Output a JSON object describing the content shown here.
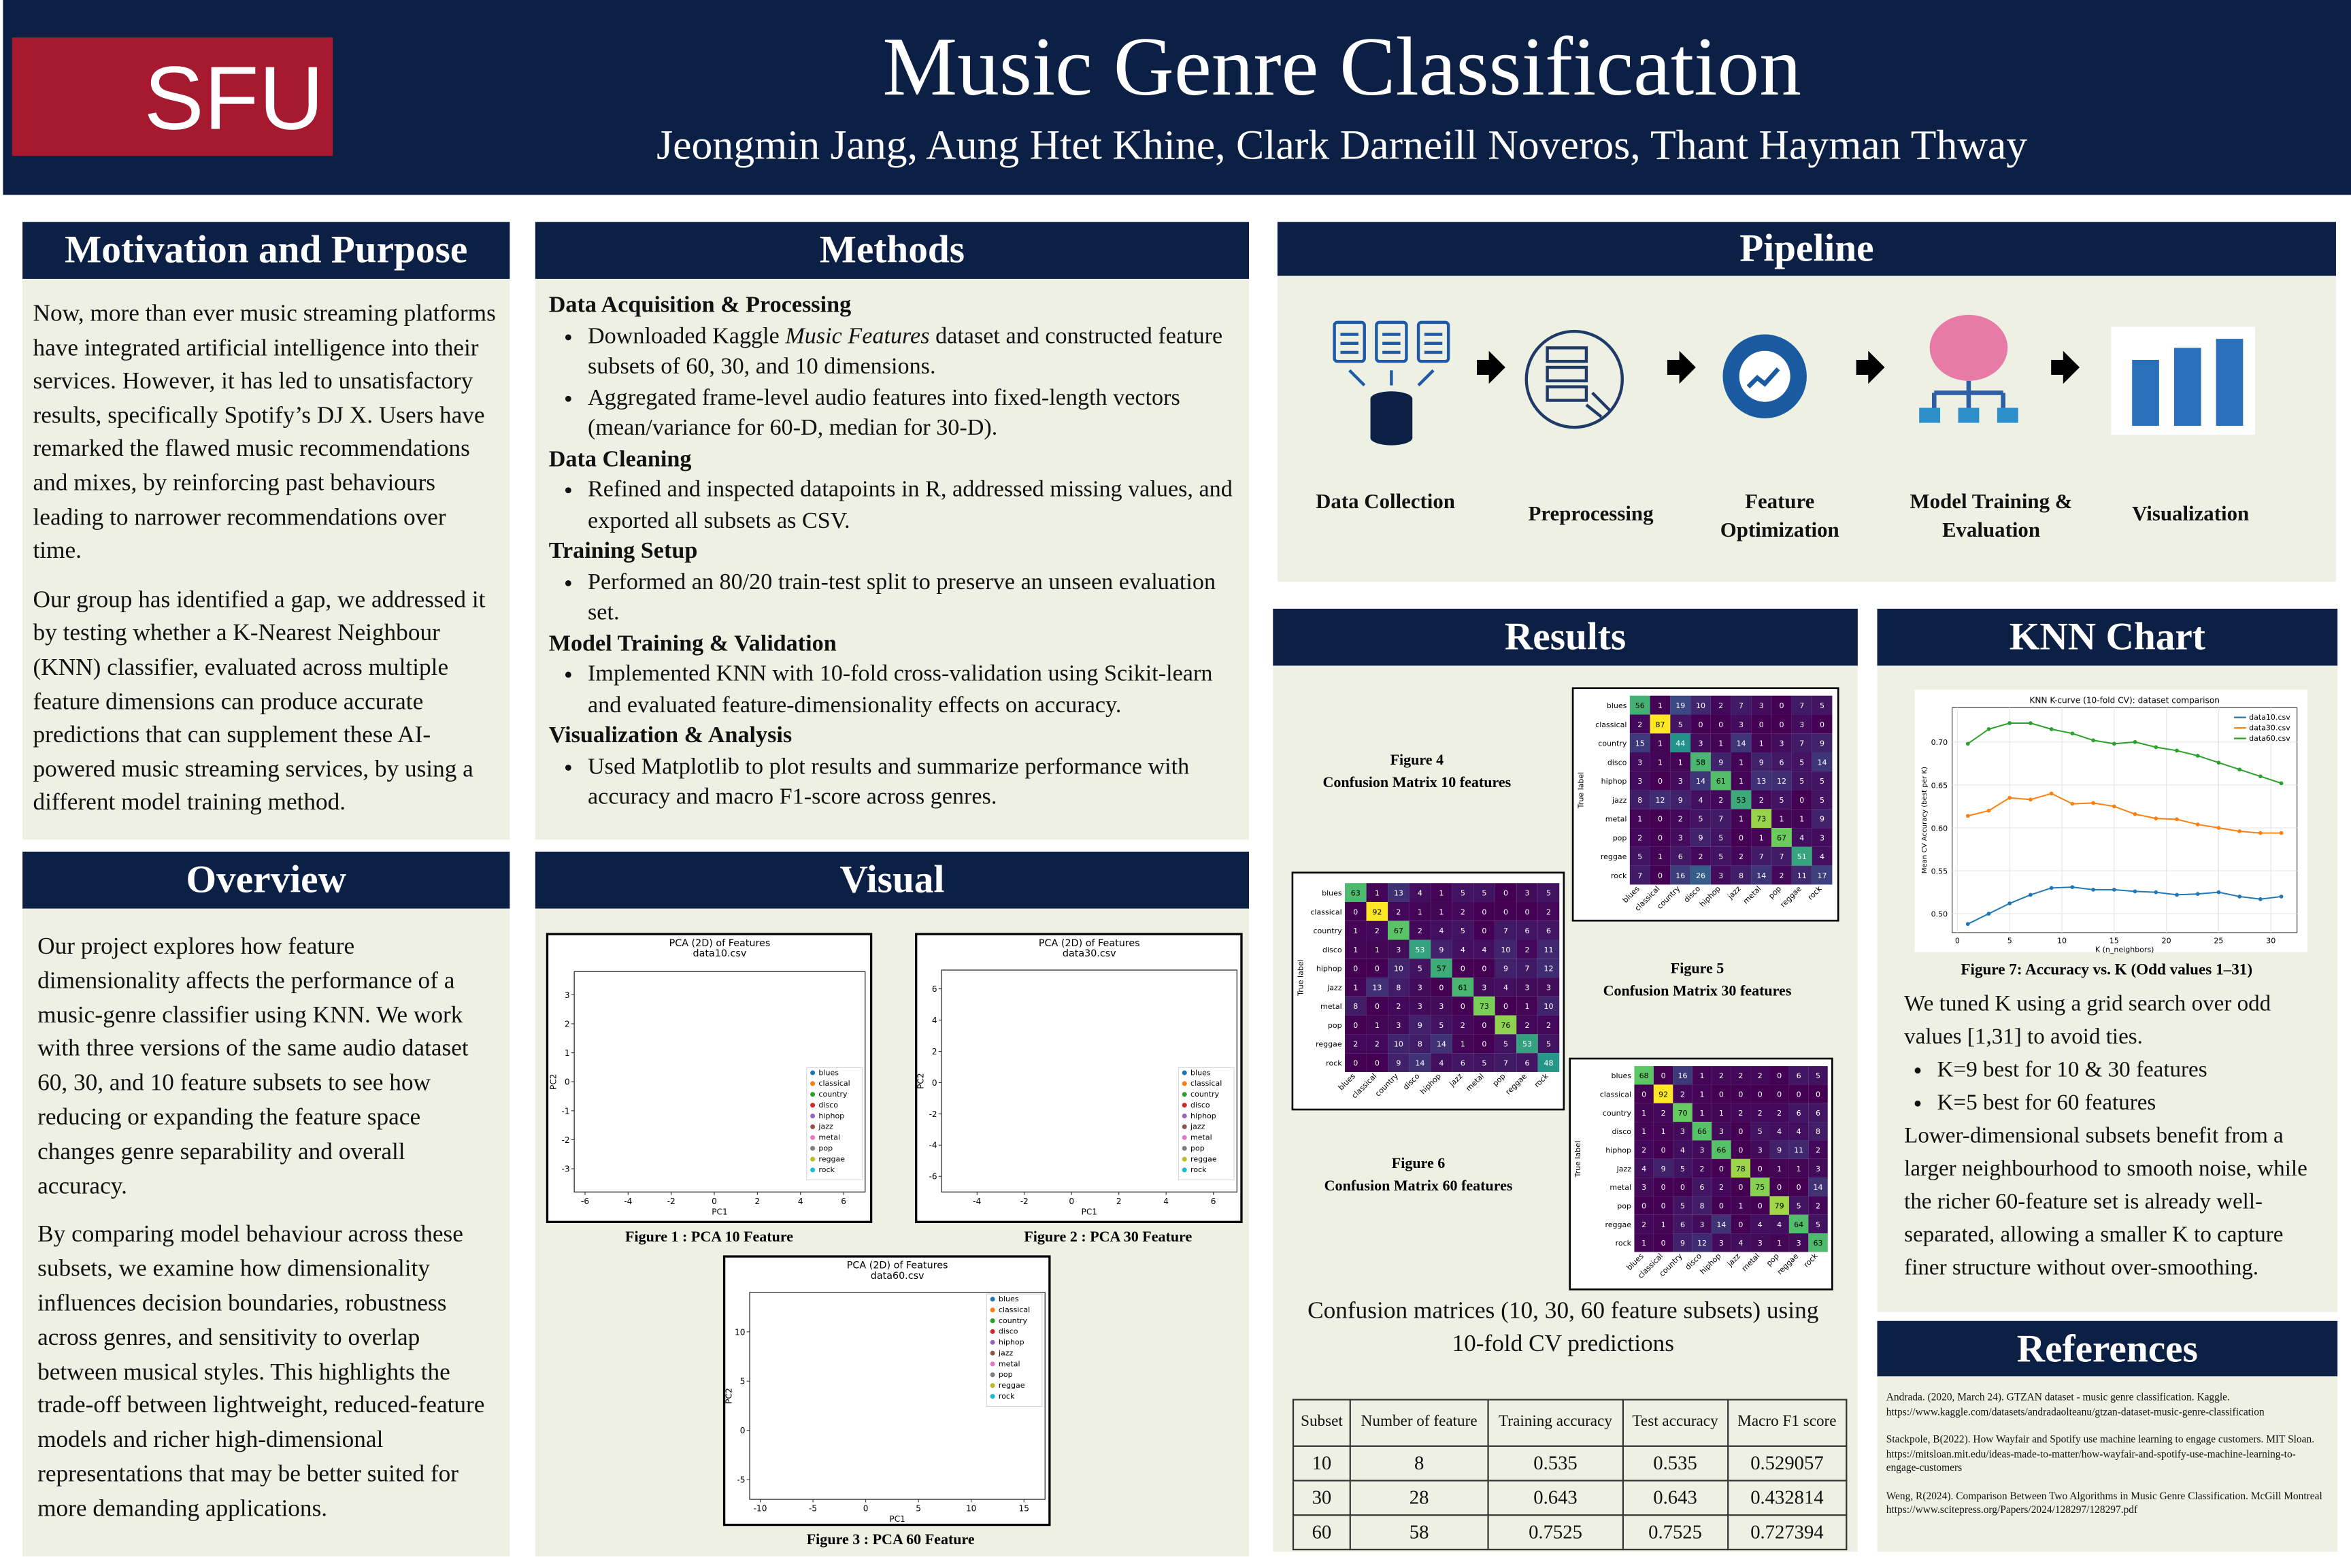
{
  "header": {
    "logo": "SFU",
    "title": "Music Genre Classification",
    "authors": "Jeongmin Jang, Aung Htet Khine, Clark Darneill Noveros, Thant Hayman Thway"
  },
  "motivation": {
    "title": "Motivation and Purpose",
    "paragraphs": [
      "Now, more than ever music streaming platforms have integrated artificial intelligence into their services. However, it has led to unsatisfactory results, specifically Spotify’s DJ X. Users have remarked the flawed music recommendations and mixes, by reinforcing past behaviours leading to narrower recommendations over time.",
      "Our group has identified a gap, we addressed it by testing whether a K-Nearest Neighbour (KNN) classifier, evaluated across multiple feature dimensions can produce accurate predictions that can supplement these AI-powered music streaming services, by using a different model training method."
    ]
  },
  "methods": {
    "title": "Methods",
    "sections": [
      {
        "heading": "Data Acquisition & Processing",
        "bullets": [
          [
            "Downloaded Kaggle ",
            "Music Features",
            " dataset and constructed feature subsets of 60, 30, and 10 dimensions."
          ],
          [
            "Aggregated frame-level audio features into fixed-length vectors (mean/variance for 60-D, median for 30-D)."
          ]
        ]
      },
      {
        "heading": "Data Cleaning",
        "bullets": [
          [
            "Refined and inspected datapoints in R, addressed missing values, and exported all subsets as CSV."
          ]
        ]
      },
      {
        "heading": "Training Setup",
        "bullets": [
          [
            "Performed an 80/20 train-test split to preserve an unseen evaluation set."
          ]
        ]
      },
      {
        "heading": "Model Training & Validation",
        "bullets": [
          [
            "Implemented KNN with 10-fold cross-validation using Scikit-learn and evaluated feature-dimensionality effects on accuracy."
          ]
        ]
      },
      {
        "heading": "Visualization & Analysis",
        "bullets": [
          [
            "Used Matplotlib to plot results and summarize performance with accuracy and macro F1-score across genres."
          ]
        ]
      }
    ]
  },
  "pipeline": {
    "title": "Pipeline",
    "steps": [
      "Data Collection",
      "Preprocessing",
      "Feature Optimization",
      "Model Training & Evaluation",
      "Visualization"
    ]
  },
  "overview": {
    "title": "Overview",
    "paragraphs": [
      "Our project explores how feature dimensionality affects the performance of a music-genre classifier using KNN. We work with three versions of the same audio dataset 60, 30, and 10 feature subsets to see how reducing or expanding the feature space changes genre separability and overall accuracy.",
      "By comparing model behaviour across these subsets, we examine how dimensionality influences decision boundaries, robustness across genres, and sensitivity to overlap between musical styles. This highlights the trade-off between lightweight, reduced-feature models and richer high-dimensional representations that may be better suited for more demanding applications."
    ]
  },
  "visual": {
    "title": "Visual"
  },
  "results": {
    "title": "Results",
    "summary": "Confusion matrices (10, 30, 60 feature subsets) using 10-fold CV predictions"
  },
  "table": {
    "headers": [
      "Subset",
      "Number of feature",
      "Training accuracy",
      "Test accuracy",
      "Macro F1 score"
    ],
    "rows": [
      [
        10,
        8,
        0.535,
        0.535,
        0.529057
      ],
      [
        30,
        28,
        0.643,
        0.643,
        0.432814
      ],
      [
        60,
        58,
        0.7525,
        0.7525,
        0.727394
      ]
    ]
  },
  "knn": {
    "title": "KNN Chart",
    "intro": "We tuned K using a grid search over odd values [1,31] to avoid ties.",
    "bullets": [
      "K=9 best for 10 & 30 features",
      "K=5 best for 60 features"
    ],
    "conclusion": "Lower-dimensional subsets benefit from a larger neighbourhood to smooth noise, while the richer 60-feature set is already well-separated, allowing a smaller K to capture finer structure without over-smoothing."
  },
  "references": {
    "title": "References",
    "items": [
      "Andrada. (2020, March 24). GTZAN dataset - music genre classification. Kaggle. https://www.kaggle.com/datasets/andradaolteanu/gtzan-dataset-music-genre-classification",
      "Stackpole, B(2022). How Wayfair and Spotify use machine learning to engage customers. MIT Sloan. https://mitsloan.mit.edu/ideas-made-to-matter/how-wayfair-and-spotify-use-machine-learning-to-engage-customers",
      "Weng, R(2024). Comparison Between Two Algorithms in Music Genre Classification. McGill Montreal https://www.scitepress.org/Papers/2024/128297/128297.pdf"
    ]
  },
  "chart_data": [
    {
      "type": "scatter",
      "title": [
        "PCA (2D) of Features",
        "data10.csv"
      ],
      "xlabel": "PC1",
      "ylabel": "PC2",
      "caption": "Figure 1 : PCA 10 Feature",
      "xlim": [
        -6.5,
        7
      ],
      "ylim": [
        -3.8,
        3.8
      ],
      "xticks": [
        -6,
        -4,
        -2,
        0,
        2,
        4,
        6
      ],
      "yticks": [
        -3,
        -2,
        -1,
        0,
        1,
        2,
        3
      ],
      "legend": "lower right",
      "series": [
        {
          "name": "blues",
          "color": "#1f77b4"
        },
        {
          "name": "classical",
          "color": "#ff7f0e"
        },
        {
          "name": "country",
          "color": "#2ca02c"
        },
        {
          "name": "disco",
          "color": "#d62728"
        },
        {
          "name": "hiphop",
          "color": "#9467bd"
        },
        {
          "name": "jazz",
          "color": "#8c564b"
        },
        {
          "name": "metal",
          "color": "#e377c2"
        },
        {
          "name": "pop",
          "color": "#7f7f7f"
        },
        {
          "name": "reggae",
          "color": "#bcbd22"
        },
        {
          "name": "rock",
          "color": "#17becf"
        }
      ]
    },
    {
      "type": "scatter",
      "title": [
        "PCA (2D) of Features",
        "data30.csv"
      ],
      "xlabel": "PC1",
      "ylabel": "PC2",
      "caption": "Figure 2 : PCA 30 Feature",
      "xlim": [
        -5.5,
        7
      ],
      "ylim": [
        -7,
        7.2
      ],
      "xticks": [
        -4,
        -2,
        0,
        2,
        4,
        6
      ],
      "yticks": [
        -6,
        -4,
        -2,
        0,
        2,
        4,
        6
      ],
      "legend": "lower right",
      "series": [
        {
          "name": "blues",
          "color": "#1f77b4"
        },
        {
          "name": "classical",
          "color": "#ff7f0e"
        },
        {
          "name": "country",
          "color": "#2ca02c"
        },
        {
          "name": "disco",
          "color": "#d62728"
        },
        {
          "name": "hiphop",
          "color": "#9467bd"
        },
        {
          "name": "jazz",
          "color": "#8c564b"
        },
        {
          "name": "metal",
          "color": "#e377c2"
        },
        {
          "name": "pop",
          "color": "#7f7f7f"
        },
        {
          "name": "reggae",
          "color": "#bcbd22"
        },
        {
          "name": "rock",
          "color": "#17becf"
        }
      ]
    },
    {
      "type": "scatter",
      "title": [
        "PCA (2D) of Features",
        "data60.csv"
      ],
      "xlabel": "PC1",
      "ylabel": "PC2",
      "caption": "Figure 3 : PCA 60 Feature",
      "xlim": [
        -11,
        17
      ],
      "ylim": [
        -7,
        14
      ],
      "xticks": [
        -10,
        -5,
        0,
        5,
        10,
        15
      ],
      "yticks": [
        -5,
        0,
        5,
        10
      ],
      "legend": "upper right",
      "series": [
        {
          "name": "blues",
          "color": "#1f77b4"
        },
        {
          "name": "classical",
          "color": "#ff7f0e"
        },
        {
          "name": "country",
          "color": "#2ca02c"
        },
        {
          "name": "disco",
          "color": "#d62728"
        },
        {
          "name": "hiphop",
          "color": "#9467bd"
        },
        {
          "name": "jazz",
          "color": "#8c564b"
        },
        {
          "name": "metal",
          "color": "#e377c2"
        },
        {
          "name": "pop",
          "color": "#7f7f7f"
        },
        {
          "name": "reggae",
          "color": "#bcbd22"
        },
        {
          "name": "rock",
          "color": "#17becf"
        }
      ]
    },
    {
      "type": "heatmap",
      "caption": [
        "Figure 4",
        "Confusion Matrix 10 features"
      ],
      "ylabel": "True label",
      "categories": [
        "blues",
        "classical",
        "country",
        "disco",
        "hiphop",
        "jazz",
        "metal",
        "pop",
        "reggae",
        "rock"
      ],
      "values": [
        [
          63,
          1,
          13,
          4,
          1,
          5,
          5,
          0,
          3,
          5
        ],
        [
          0,
          92,
          2,
          1,
          1,
          2,
          0,
          0,
          0,
          2
        ],
        [
          1,
          2,
          67,
          2,
          4,
          5,
          0,
          7,
          6,
          6
        ],
        [
          1,
          1,
          3,
          53,
          9,
          4,
          4,
          10,
          2,
          11
        ],
        [
          0,
          0,
          10,
          5,
          57,
          0,
          0,
          9,
          7,
          12
        ],
        [
          1,
          13,
          8,
          3,
          0,
          61,
          3,
          4,
          3,
          3
        ],
        [
          8,
          0,
          2,
          3,
          3,
          0,
          73,
          0,
          1,
          10
        ],
        [
          0,
          1,
          3,
          9,
          5,
          2,
          0,
          76,
          2,
          2
        ],
        [
          2,
          2,
          10,
          8,
          14,
          1,
          0,
          5,
          53,
          5
        ],
        [
          0,
          0,
          9,
          14,
          4,
          6,
          5,
          7,
          6,
          48
        ]
      ]
    },
    {
      "type": "heatmap",
      "caption": [
        "Figure 5",
        "Confusion Matrix 30 features"
      ],
      "ylabel": "True label",
      "categories": [
        "blues",
        "classical",
        "country",
        "disco",
        "hiphop",
        "jazz",
        "metal",
        "pop",
        "reggae",
        "rock"
      ],
      "values": [
        [
          56,
          1,
          19,
          10,
          2,
          7,
          3,
          0,
          7,
          5
        ],
        [
          2,
          87,
          5,
          0,
          0,
          3,
          0,
          0,
          3,
          0
        ],
        [
          15,
          1,
          44,
          3,
          1,
          14,
          1,
          3,
          7,
          9
        ],
        [
          3,
          1,
          1,
          58,
          9,
          1,
          9,
          6,
          5,
          14
        ],
        [
          3,
          0,
          3,
          14,
          61,
          1,
          13,
          12,
          5,
          5
        ],
        [
          8,
          12,
          9,
          4,
          2,
          53,
          2,
          5,
          0,
          5
        ],
        [
          1,
          0,
          2,
          5,
          7,
          1,
          73,
          1,
          1,
          9
        ],
        [
          2,
          0,
          3,
          9,
          5,
          0,
          1,
          67,
          4,
          3
        ],
        [
          5,
          1,
          6,
          2,
          5,
          2,
          7,
          7,
          51,
          4
        ],
        [
          7,
          0,
          16,
          26,
          3,
          8,
          14,
          2,
          11,
          17
        ]
      ]
    },
    {
      "type": "heatmap",
      "caption": [
        "Figure 6",
        "Confusion Matrix 60 features"
      ],
      "ylabel": "True label",
      "categories": [
        "blues",
        "classical",
        "country",
        "disco",
        "hiphop",
        "jazz",
        "metal",
        "pop",
        "reggae",
        "rock"
      ],
      "values": [
        [
          68,
          0,
          16,
          1,
          2,
          2,
          2,
          0,
          6,
          5
        ],
        [
          0,
          92,
          2,
          1,
          0,
          0,
          0,
          0,
          0,
          0
        ],
        [
          1,
          2,
          70,
          1,
          1,
          2,
          2,
          2,
          6,
          6
        ],
        [
          1,
          1,
          3,
          66,
          3,
          0,
          5,
          4,
          4,
          8
        ],
        [
          2,
          0,
          4,
          3,
          66,
          0,
          3,
          9,
          11,
          2
        ],
        [
          4,
          9,
          5,
          2,
          0,
          78,
          0,
          1,
          1,
          3
        ],
        [
          3,
          0,
          0,
          6,
          2,
          0,
          75,
          0,
          0,
          14
        ],
        [
          0,
          0,
          5,
          8,
          0,
          1,
          0,
          79,
          5,
          2
        ],
        [
          2,
          1,
          6,
          3,
          14,
          0,
          4,
          4,
          64,
          5
        ],
        [
          1,
          0,
          9,
          12,
          3,
          4,
          3,
          1,
          3,
          63
        ]
      ]
    },
    {
      "type": "line",
      "title": "KNN K-curve (10-fold CV): dataset comparison",
      "xlabel": "K (n_neighbors)",
      "ylabel": "Mean CV Accuracy (best per K)",
      "caption": "Figure 7: Accuracy vs. K (Odd values 1–31)",
      "grid": true,
      "legend": "upper right",
      "x": [
        1,
        3,
        5,
        7,
        9,
        11,
        13,
        15,
        17,
        19,
        21,
        23,
        25,
        27,
        29,
        31
      ],
      "xlim": [
        -0.5,
        32.5
      ],
      "xticks": [
        0,
        5,
        10,
        15,
        20,
        25,
        30
      ],
      "ylim": [
        0.478,
        0.74
      ],
      "yticks": [
        {
          "value": 0.5,
          "label": "0.50"
        },
        {
          "value": 0.55,
          "label": "0.55"
        },
        {
          "value": 0.6,
          "label": "0.60"
        },
        {
          "value": 0.65,
          "label": "0.65"
        },
        {
          "value": 0.7,
          "label": "0.70"
        }
      ],
      "series": [
        {
          "name": "data10.csv",
          "color": "#1f77b4",
          "values": [
            0.488,
            0.5,
            0.512,
            0.522,
            0.53,
            0.531,
            0.528,
            0.528,
            0.526,
            0.525,
            0.522,
            0.523,
            0.525,
            0.52,
            0.517,
            0.52
          ]
        },
        {
          "name": "data30.csv",
          "color": "#ff7f0e",
          "values": [
            0.614,
            0.62,
            0.635,
            0.633,
            0.64,
            0.628,
            0.629,
            0.625,
            0.616,
            0.611,
            0.61,
            0.604,
            0.6,
            0.596,
            0.594,
            0.594
          ]
        },
        {
          "name": "data60.csv",
          "color": "#2ca02c",
          "values": [
            0.698,
            0.715,
            0.722,
            0.722,
            0.715,
            0.71,
            0.702,
            0.698,
            0.7,
            0.694,
            0.69,
            0.684,
            0.676,
            0.668,
            0.66,
            0.652
          ]
        }
      ]
    }
  ]
}
